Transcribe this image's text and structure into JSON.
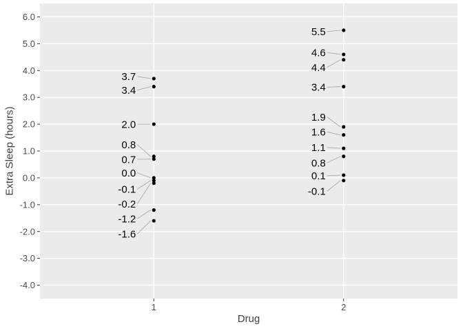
{
  "chart_data": {
    "type": "scatter",
    "title": "",
    "xlabel": "Drug",
    "ylabel": "Extra Sleep (hours)",
    "x_categories": [
      "1",
      "2"
    ],
    "y_tick_values": [
      6,
      5,
      4,
      3,
      2,
      1,
      0,
      -1,
      -2,
      -3,
      -4
    ],
    "y_tick_labels": [
      "6.0",
      "5.0",
      "4.0",
      "3.0",
      "2.0",
      "1.0",
      "0.0",
      "-1.0",
      "-2.0",
      "-3.0",
      "-4.0"
    ],
    "ylim": [
      -4.5,
      6.5
    ],
    "grid": "major-horizontal-and-category-vertical",
    "legend": "none",
    "colors": {
      "panel_bg": "#ebebeb",
      "gridline": "#ffffff",
      "tick_mark": "#333333",
      "tick_text": "#4d4d4d",
      "axis_title_text": "#404040",
      "point": "#000000",
      "leader_line": "#a8a8a8",
      "point_label_text": "#000000"
    },
    "series": [
      {
        "name": "drug-1",
        "category": "1",
        "points": [
          {
            "value": 3.7,
            "label": "3.7",
            "label_y": 3.78
          },
          {
            "value": 3.4,
            "label": "3.4",
            "label_y": 3.27
          },
          {
            "value": 2.0,
            "label": "2.0",
            "label_y": 2.0
          },
          {
            "value": 0.8,
            "label": "0.8",
            "label_y": 1.24
          },
          {
            "value": 0.7,
            "label": "0.7",
            "label_y": 0.69
          },
          {
            "value": 0.0,
            "label": "0.0",
            "label_y": 0.19
          },
          {
            "value": -0.1,
            "label": "-0.1",
            "label_y": -0.42
          },
          {
            "value": -0.2,
            "label": "-0.2",
            "label_y": -0.97
          },
          {
            "value": -1.2,
            "label": "-1.2",
            "label_y": -1.52
          },
          {
            "value": -1.6,
            "label": "-1.6",
            "label_y": -2.09
          }
        ]
      },
      {
        "name": "drug-2",
        "category": "2",
        "points": [
          {
            "value": 5.5,
            "label": "5.5",
            "label_y": 5.45
          },
          {
            "value": 4.6,
            "label": "4.6",
            "label_y": 4.67
          },
          {
            "value": 4.4,
            "label": "4.4",
            "label_y": 4.12
          },
          {
            "value": 3.4,
            "label": "3.4",
            "label_y": 3.38
          },
          {
            "value": 1.9,
            "label": "1.9",
            "label_y": 2.27
          },
          {
            "value": 1.6,
            "label": "1.6",
            "label_y": 1.71
          },
          {
            "value": 1.1,
            "label": "1.1",
            "label_y": 1.13
          },
          {
            "value": 0.8,
            "label": "0.8",
            "label_y": 0.56
          },
          {
            "value": 0.1,
            "label": "0.1",
            "label_y": 0.08
          },
          {
            "value": -0.1,
            "label": "-0.1",
            "label_y": -0.5
          }
        ]
      }
    ]
  }
}
